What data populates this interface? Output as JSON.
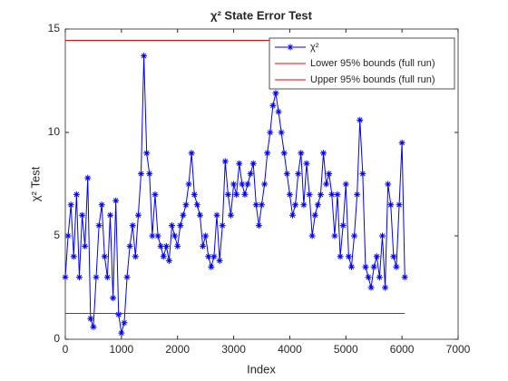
{
  "chart_data": {
    "type": "line",
    "title": "χ² State Error Test",
    "xlabel": "Index",
    "ylabel": "χ² Test",
    "xlim": [
      0,
      7000
    ],
    "xticks": [
      0,
      1000,
      2000,
      3000,
      4000,
      5000,
      6000,
      7000
    ],
    "ylim": [
      0,
      15
    ],
    "yticks": [
      0,
      5,
      10,
      15
    ],
    "legend": "northeast",
    "series": [
      {
        "name": "χ²",
        "color": "#0000ff",
        "marker": "asterisk",
        "x": [
          0,
          50,
          100,
          150,
          200,
          250,
          300,
          350,
          400,
          450,
          500,
          550,
          600,
          650,
          700,
          750,
          800,
          850,
          900,
          950,
          1000,
          1050,
          1100,
          1150,
          1200,
          1250,
          1300,
          1350,
          1400,
          1450,
          1500,
          1550,
          1600,
          1650,
          1700,
          1750,
          1800,
          1850,
          1900,
          1950,
          2000,
          2050,
          2100,
          2150,
          2200,
          2250,
          2300,
          2350,
          2400,
          2450,
          2500,
          2550,
          2600,
          2650,
          2700,
          2750,
          2800,
          2850,
          2900,
          2950,
          3000,
          3050,
          3100,
          3150,
          3200,
          3250,
          3300,
          3350,
          3400,
          3450,
          3500,
          3550,
          3600,
          3650,
          3700,
          3750,
          3800,
          3850,
          3900,
          3950,
          4000,
          4050,
          4100,
          4150,
          4200,
          4250,
          4300,
          4350,
          4400,
          4450,
          4500,
          4550,
          4600,
          4650,
          4700,
          4750,
          4800,
          4850,
          4900,
          4950,
          5000,
          5050,
          5100,
          5150,
          5200,
          5250,
          5300,
          5350,
          5400,
          5450,
          5500,
          5550,
          5600,
          5650,
          5700,
          5750,
          5800,
          5850,
          5900,
          5950,
          6000,
          6050
        ],
        "values": [
          3,
          5,
          6.5,
          4,
          7,
          3,
          6,
          4.5,
          7.8,
          1,
          0.6,
          3,
          5.5,
          6.5,
          4,
          3,
          6,
          2,
          6.7,
          1.2,
          0.3,
          0.8,
          3,
          4.5,
          5.5,
          4,
          6,
          8,
          13.7,
          9,
          8,
          5,
          7,
          5,
          4.5,
          4,
          4.5,
          3.8,
          5.5,
          5,
          4.5,
          5.5,
          6,
          6.5,
          7.5,
          9,
          7,
          6.5,
          6,
          4.5,
          5,
          4,
          3.5,
          4,
          6,
          3.8,
          5.5,
          8.6,
          7,
          6,
          7.5,
          7,
          8.5,
          7.5,
          7,
          7.5,
          8,
          8.5,
          6.5,
          5.5,
          6.5,
          7.5,
          9,
          10,
          11.3,
          11.9,
          11,
          10,
          9,
          8,
          7,
          6,
          6.5,
          8,
          9,
          6.5,
          8.5,
          7,
          5,
          6,
          6.5,
          7,
          9,
          7.5,
          8,
          7,
          5,
          7,
          4,
          5.5,
          7.5,
          4,
          3.5,
          5,
          7,
          10.6,
          8,
          3.5,
          3,
          2.5,
          3.5,
          4,
          3,
          5,
          2.5,
          7.5,
          6.5,
          4,
          3.5,
          6.5,
          9.5,
          3
        ]
      },
      {
        "name": "Lower 95% bounds (full run)",
        "color": "#ff0000",
        "x": [
          0,
          6050
        ],
        "values": [
          1.25,
          1.25
        ]
      },
      {
        "name": "Upper 95% bounds (full run)",
        "color": "#ff0000",
        "x": [
          0,
          6050
        ],
        "values": [
          14.45,
          14.45
        ]
      }
    ]
  }
}
